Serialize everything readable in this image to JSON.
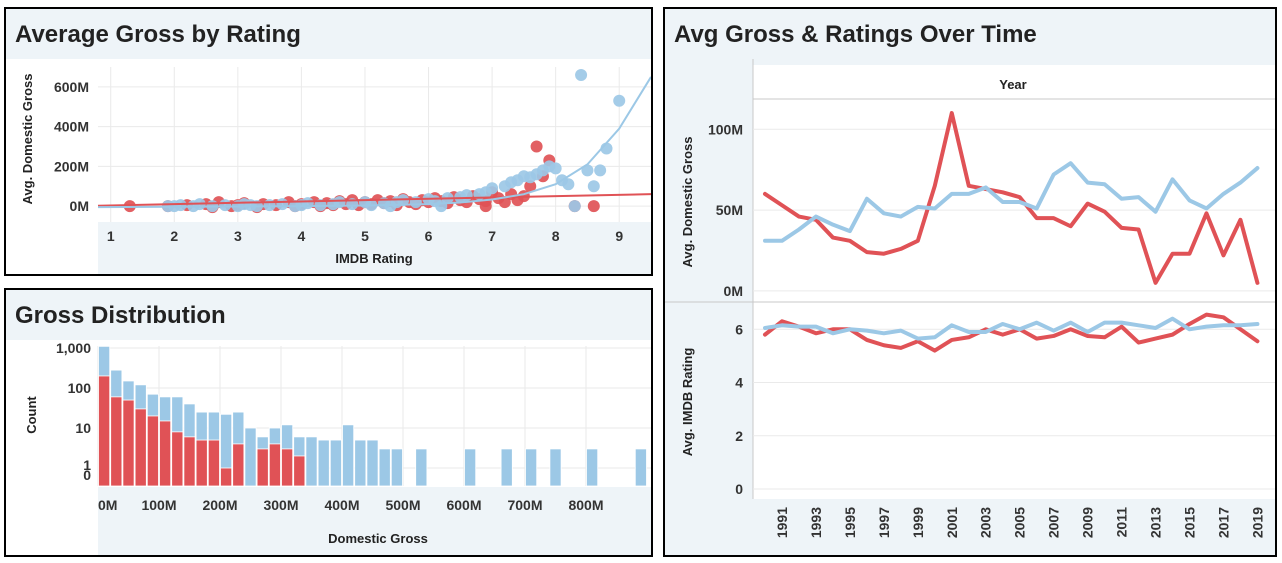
{
  "colors": {
    "red": "#e05256",
    "blue": "#9cc8e6",
    "grid": "#eaeaea",
    "band": "#eef4f8"
  },
  "panels": {
    "scatter": {
      "title": "Average Gross by Rating"
    },
    "histogram": {
      "title": "Gross Distribution"
    },
    "timeline": {
      "title": "Avg Gross & Ratings Over Time"
    }
  },
  "chart_data": [
    {
      "type": "scatter",
      "title": "Average Gross by Rating",
      "xlabel": "IMDB Rating",
      "ylabel": "Avg. Domestic Gross",
      "xlim": [
        0.8,
        9.5
      ],
      "ylim": [
        -80,
        700
      ],
      "x_ticks": [
        1,
        2,
        3,
        4,
        5,
        6,
        7,
        8,
        9
      ],
      "y_ticks": [
        {
          "v": 0,
          "label": "0M"
        },
        {
          "v": 200,
          "label": "200M"
        },
        {
          "v": 400,
          "label": "400M"
        },
        {
          "v": 600,
          "label": "600M"
        }
      ],
      "grid": true,
      "series": [
        {
          "color": "red",
          "points": [
            [
              1.3,
              0
            ],
            [
              1.9,
              0
            ],
            [
              2.2,
              5
            ],
            [
              2.5,
              10
            ],
            [
              2.6,
              -5
            ],
            [
              2.7,
              20
            ],
            [
              2.9,
              0
            ],
            [
              3.0,
              5
            ],
            [
              3.1,
              15
            ],
            [
              3.3,
              -5
            ],
            [
              3.4,
              10
            ],
            [
              3.6,
              5
            ],
            [
              3.8,
              20
            ],
            [
              3.9,
              0
            ],
            [
              4.0,
              10
            ],
            [
              4.2,
              20
            ],
            [
              4.3,
              0
            ],
            [
              4.4,
              15
            ],
            [
              4.5,
              5
            ],
            [
              4.6,
              25
            ],
            [
              4.7,
              10
            ],
            [
              4.8,
              30
            ],
            [
              4.9,
              5
            ],
            [
              5.0,
              20
            ],
            [
              5.1,
              10
            ],
            [
              5.2,
              30
            ],
            [
              5.3,
              15
            ],
            [
              5.4,
              25
            ],
            [
              5.5,
              5
            ],
            [
              5.6,
              35
            ],
            [
              5.7,
              20
            ],
            [
              5.8,
              10
            ],
            [
              5.9,
              30
            ],
            [
              6.0,
              20
            ],
            [
              6.1,
              40
            ],
            [
              6.2,
              25
            ],
            [
              6.3,
              15
            ],
            [
              6.4,
              45
            ],
            [
              6.5,
              30
            ],
            [
              6.6,
              20
            ],
            [
              6.7,
              50
            ],
            [
              6.8,
              35
            ],
            [
              6.9,
              25
            ],
            [
              7.0,
              70
            ],
            [
              7.1,
              40
            ],
            [
              7.2,
              20
            ],
            [
              7.3,
              60
            ],
            [
              7.4,
              30
            ],
            [
              7.5,
              50
            ],
            [
              7.6,
              100
            ],
            [
              7.7,
              300
            ],
            [
              7.8,
              150
            ],
            [
              7.9,
              230
            ],
            [
              8.3,
              0
            ],
            [
              8.6,
              0
            ],
            [
              6.9,
              0
            ]
          ],
          "trend": [
            [
              0.8,
              2
            ],
            [
              9.5,
              60
            ]
          ]
        },
        {
          "color": "blue",
          "points": [
            [
              1.9,
              0
            ],
            [
              2.0,
              0
            ],
            [
              2.1,
              5
            ],
            [
              2.3,
              0
            ],
            [
              2.4,
              10
            ],
            [
              2.6,
              0
            ],
            [
              2.8,
              5
            ],
            [
              3.0,
              0
            ],
            [
              3.1,
              10
            ],
            [
              3.2,
              5
            ],
            [
              3.3,
              0
            ],
            [
              3.5,
              5
            ],
            [
              3.7,
              10
            ],
            [
              3.9,
              0
            ],
            [
              4.0,
              5
            ],
            [
              4.1,
              15
            ],
            [
              4.3,
              5
            ],
            [
              4.5,
              10
            ],
            [
              4.6,
              20
            ],
            [
              4.8,
              10
            ],
            [
              5.0,
              20
            ],
            [
              5.1,
              5
            ],
            [
              5.3,
              15
            ],
            [
              5.5,
              20
            ],
            [
              5.6,
              30
            ],
            [
              5.8,
              20
            ],
            [
              6.0,
              35
            ],
            [
              6.1,
              25
            ],
            [
              6.3,
              40
            ],
            [
              6.5,
              45
            ],
            [
              6.6,
              55
            ],
            [
              6.8,
              60
            ],
            [
              6.9,
              70
            ],
            [
              7.0,
              90
            ],
            [
              7.2,
              100
            ],
            [
              7.3,
              120
            ],
            [
              7.4,
              130
            ],
            [
              7.5,
              150
            ],
            [
              7.6,
              145
            ],
            [
              7.7,
              160
            ],
            [
              7.8,
              180
            ],
            [
              7.9,
              200
            ],
            [
              8.0,
              190
            ],
            [
              8.1,
              130
            ],
            [
              8.2,
              110
            ],
            [
              8.3,
              0
            ],
            [
              8.4,
              660
            ],
            [
              8.5,
              180
            ],
            [
              8.6,
              100
            ],
            [
              8.7,
              180
            ],
            [
              8.8,
              290
            ],
            [
              9.0,
              530
            ],
            [
              5.4,
              0
            ],
            [
              6.2,
              0
            ]
          ],
          "trend": [
            [
              0.8,
              -5
            ],
            [
              2,
              -3
            ],
            [
              3,
              -2
            ],
            [
              4,
              0
            ],
            [
              5,
              3
            ],
            [
              6,
              10
            ],
            [
              6.5,
              18
            ],
            [
              7,
              33
            ],
            [
              7.5,
              60
            ],
            [
              8,
              110
            ],
            [
              8.5,
              210
            ],
            [
              9,
              390
            ],
            [
              9.5,
              650
            ]
          ]
        }
      ]
    },
    {
      "type": "bar",
      "title": "Gross Distribution",
      "xlabel": "Domestic Gross",
      "ylabel": "Count",
      "y_scale": "log",
      "x_ticks": [
        {
          "v": 0,
          "label": "0M"
        },
        {
          "v": 100,
          "label": "100M"
        },
        {
          "v": 200,
          "label": "200M"
        },
        {
          "v": 300,
          "label": "300M"
        },
        {
          "v": 400,
          "label": "400M"
        },
        {
          "v": 500,
          "label": "500M"
        },
        {
          "v": 600,
          "label": "600M"
        },
        {
          "v": 700,
          "label": "700M"
        },
        {
          "v": 800,
          "label": "800M"
        }
      ],
      "y_ticks": [
        {
          "v": 1000,
          "label": "1,000"
        },
        {
          "v": 100,
          "label": "100"
        },
        {
          "v": 10,
          "label": "10"
        },
        {
          "v": 1,
          "label": "1"
        },
        {
          "v": 0,
          "label": "0"
        }
      ],
      "bin_width_m": 20,
      "series": [
        {
          "color": "blue",
          "bins": [
            [
              0,
              1100
            ],
            [
              20,
              280
            ],
            [
              40,
              150
            ],
            [
              60,
              120
            ],
            [
              80,
              70
            ],
            [
              100,
              60
            ],
            [
              120,
              60
            ],
            [
              140,
              40
            ],
            [
              160,
              25
            ],
            [
              180,
              25
            ],
            [
              200,
              22
            ],
            [
              220,
              25
            ],
            [
              240,
              10
            ],
            [
              260,
              6
            ],
            [
              280,
              10
            ],
            [
              300,
              12
            ],
            [
              320,
              6
            ],
            [
              340,
              6
            ],
            [
              360,
              5
            ],
            [
              380,
              5
            ],
            [
              400,
              12
            ],
            [
              420,
              5
            ],
            [
              440,
              5
            ],
            [
              460,
              3
            ],
            [
              480,
              3
            ],
            [
              520,
              3
            ],
            [
              600,
              3
            ],
            [
              660,
              3
            ],
            [
              700,
              3
            ],
            [
              740,
              3
            ],
            [
              800,
              3
            ],
            [
              880,
              3
            ]
          ]
        },
        {
          "color": "red",
          "bins": [
            [
              0,
              200
            ],
            [
              20,
              60
            ],
            [
              40,
              50
            ],
            [
              60,
              30
            ],
            [
              80,
              20
            ],
            [
              100,
              15
            ],
            [
              120,
              8
            ],
            [
              140,
              6
            ],
            [
              160,
              5
            ],
            [
              180,
              5
            ],
            [
              200,
              1
            ],
            [
              220,
              4
            ],
            [
              240,
              0
            ],
            [
              260,
              3
            ],
            [
              280,
              4
            ],
            [
              300,
              3
            ],
            [
              320,
              2
            ]
          ]
        }
      ]
    },
    {
      "type": "line",
      "title": "Avg Gross & Ratings Over Time",
      "xlabel": "Year",
      "x_ticks": [
        1991,
        1993,
        1995,
        1997,
        1999,
        2001,
        2003,
        2005,
        2007,
        2009,
        2011,
        2013,
        2015,
        2017,
        2019
      ],
      "x": [
        1990,
        1991,
        1992,
        1993,
        1994,
        1995,
        1996,
        1997,
        1998,
        1999,
        2000,
        2001,
        2002,
        2003,
        2004,
        2005,
        2006,
        2007,
        2008,
        2009,
        2010,
        2011,
        2012,
        2013,
        2014,
        2015,
        2016,
        2017,
        2018,
        2019
      ],
      "panes": [
        {
          "ylabel": "Avg. Domestic Gross",
          "ylim": [
            -5,
            115
          ],
          "y_ticks": [
            {
              "v": 0,
              "label": "0M"
            },
            {
              "v": 50,
              "label": "50M"
            },
            {
              "v": 100,
              "label": "100M"
            }
          ],
          "series": [
            {
              "color": "red",
              "values": [
                60,
                53,
                46,
                44,
                33,
                31,
                24,
                23,
                26,
                31,
                65,
                110,
                65,
                63,
                61,
                58,
                45,
                45,
                40,
                54,
                49,
                39,
                38,
                5,
                23,
                23,
                48,
                22,
                44,
                5
              ]
            },
            {
              "color": "blue",
              "values": [
                31,
                31,
                38,
                46,
                41,
                37,
                57,
                48,
                46,
                52,
                51,
                60,
                60,
                64,
                55,
                55,
                51,
                72,
                79,
                67,
                66,
                57,
                58,
                49,
                69,
                56,
                51,
                60,
                67,
                76
              ]
            }
          ]
        },
        {
          "ylabel": "Avg. IMDB Rating",
          "ylim": [
            -0.3,
            6.8
          ],
          "y_ticks": [
            {
              "v": 0,
              "label": "0"
            },
            {
              "v": 2,
              "label": "2"
            },
            {
              "v": 4,
              "label": "4"
            },
            {
              "v": 6,
              "label": "6"
            }
          ],
          "series": [
            {
              "color": "red",
              "values": [
                5.8,
                6.3,
                6.1,
                5.85,
                6.0,
                6.0,
                5.6,
                5.4,
                5.3,
                5.55,
                5.2,
                5.6,
                5.7,
                6.0,
                5.8,
                6.0,
                5.65,
                5.75,
                6.0,
                5.75,
                5.7,
                6.1,
                5.5,
                5.65,
                5.8,
                6.2,
                6.55,
                6.45,
                6.0,
                5.55
              ]
            },
            {
              "color": "blue",
              "values": [
                6.05,
                6.15,
                6.1,
                6.1,
                5.85,
                6.0,
                5.95,
                5.85,
                5.95,
                5.65,
                5.7,
                6.15,
                5.9,
                5.9,
                6.2,
                6.0,
                6.25,
                5.95,
                6.25,
                5.9,
                6.25,
                6.25,
                6.15,
                6.05,
                6.4,
                6.0,
                6.1,
                6.15,
                6.15,
                6.2
              ]
            }
          ]
        }
      ]
    }
  ]
}
